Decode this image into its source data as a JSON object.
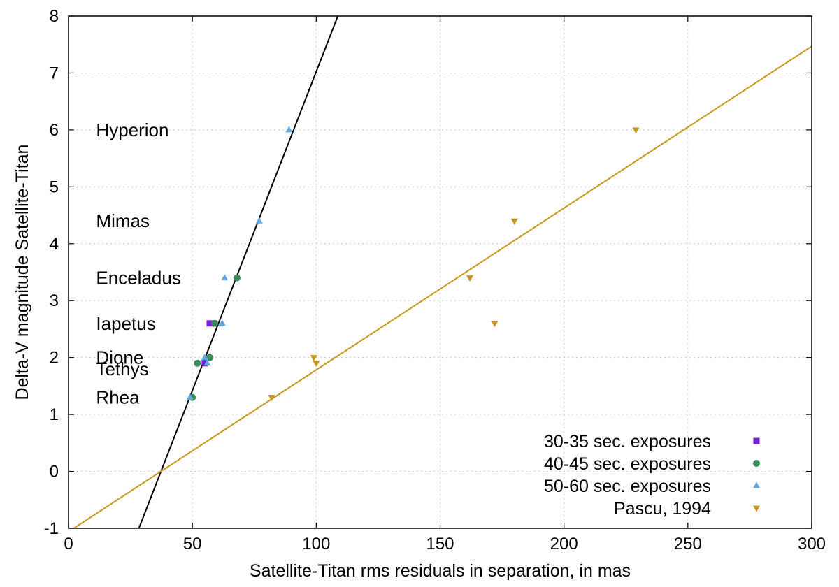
{
  "chart_data": {
    "type": "scatter",
    "title": "",
    "xlabel": "Satellite-Titan rms residuals in separation, in mas",
    "ylabel": "Delta-V magnitude Satellite-Titan",
    "xlim": [
      0,
      300
    ],
    "ylim": [
      -1,
      8
    ],
    "xticks": [
      "0",
      "50",
      "100",
      "150",
      "200",
      "250",
      "300"
    ],
    "yticks": [
      "-1",
      "0",
      "1",
      "2",
      "3",
      "4",
      "5",
      "6",
      "7",
      "8"
    ],
    "grid": true,
    "legend_position": "bottom-right",
    "series": [
      {
        "name": "30-35 sec. exposures",
        "marker": "square",
        "color": "#7b1fd6",
        "points": [
          [
            57,
            2.6
          ],
          [
            55,
            1.9
          ]
        ]
      },
      {
        "name": "40-45 sec. exposures",
        "marker": "circle",
        "color": "#3a8a5a",
        "points": [
          [
            68,
            3.4
          ],
          [
            59,
            2.6
          ],
          [
            52,
            1.9
          ],
          [
            57,
            2.0
          ],
          [
            50,
            1.3
          ]
        ]
      },
      {
        "name": "50-60 sec. exposures",
        "marker": "triangle-up",
        "color": "#62a8e0",
        "points": [
          [
            89,
            6.0
          ],
          [
            77,
            4.4
          ],
          [
            63,
            3.4
          ],
          [
            62,
            2.6
          ],
          [
            56,
            1.9
          ],
          [
            55,
            2.0
          ],
          [
            49,
            1.3
          ]
        ]
      },
      {
        "name": "Pascu, 1994",
        "marker": "triangle-down",
        "color": "#c8961e",
        "points": [
          [
            229,
            6.0
          ],
          [
            180,
            4.4
          ],
          [
            162,
            3.4
          ],
          [
            172,
            2.6
          ],
          [
            99,
            2.0
          ],
          [
            100,
            1.9
          ],
          [
            82,
            1.3
          ]
        ]
      }
    ],
    "fit_lines": [
      {
        "name": "fit-black",
        "color": "#000000",
        "points": [
          [
            28.4,
            -1
          ],
          [
            108.7,
            8
          ]
        ]
      },
      {
        "name": "fit-gold",
        "color": "#c8961e",
        "points": [
          [
            0,
            -1.06
          ],
          [
            300,
            7.47
          ]
        ]
      }
    ],
    "annotations": [
      {
        "text": "Hyperion",
        "x": 10,
        "y": 6.0
      },
      {
        "text": "Mimas",
        "x": 10,
        "y": 4.4
      },
      {
        "text": "Enceladus",
        "x": 10,
        "y": 3.4
      },
      {
        "text": "Iapetus",
        "x": 10,
        "y": 2.6
      },
      {
        "text": "Dione",
        "x": 10,
        "y": 2.0
      },
      {
        "text": "Tethys",
        "x": 10,
        "y": 1.8
      },
      {
        "text": "Rhea",
        "x": 10,
        "y": 1.3
      }
    ]
  }
}
